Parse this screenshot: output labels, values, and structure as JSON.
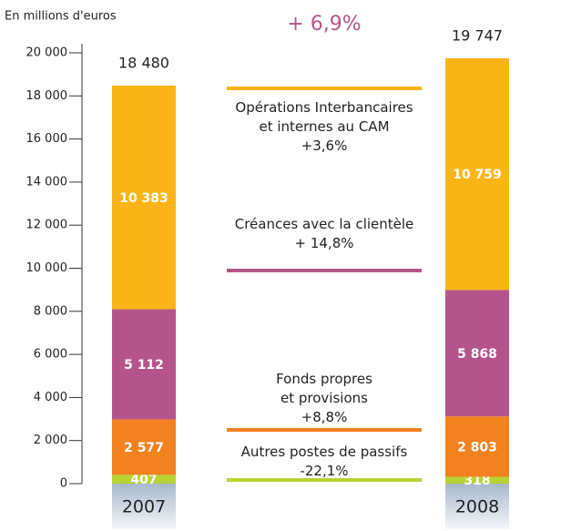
{
  "chart_data": {
    "type": "stacked_bar",
    "subtitle": "+ 6,9%",
    "y_axis_label": "En millions d'euros",
    "categories": [
      "2007",
      "2008"
    ],
    "series": [
      {
        "name": "Autres postes de passifs",
        "change": "-22,1%",
        "color": "#b7d334",
        "values": [
          407,
          318
        ],
        "value_labels": [
          "407",
          "318"
        ]
      },
      {
        "name": "Fonds propres et provisions",
        "change": "+8,8%",
        "color": "#f2811f",
        "values": [
          2577,
          2803
        ],
        "value_labels": [
          "2 577",
          "2 803"
        ]
      },
      {
        "name": "Créances avec la clientèle",
        "change": "+ 14,8%",
        "color": "#b4548a",
        "values": [
          5112,
          5868
        ],
        "value_labels": [
          "5 112",
          "5 868"
        ]
      },
      {
        "name": "Opérations Interbancaires et internes au CAM",
        "change": "+3,6%",
        "color": "#fbb418",
        "values": [
          10383,
          10759
        ],
        "value_labels": [
          "10 383",
          "10 759"
        ]
      }
    ],
    "totals": {
      "values": [
        18480,
        19747
      ],
      "value_labels": [
        "18 480",
        "19 747"
      ]
    },
    "ylim": [
      0,
      20000
    ],
    "yticks": [
      0,
      {
        "value": 2000,
        "label": "2 000"
      },
      {
        "value": 4000,
        "label": "4 000"
      },
      {
        "value": 6000,
        "label": "6 000"
      },
      {
        "value": 8000,
        "label": "8 000"
      },
      {
        "value": 10000,
        "label": "10 000"
      },
      {
        "value": 12000,
        "label": "12 000"
      },
      {
        "value": 14000,
        "label": "14 000"
      },
      {
        "value": 16000,
        "label": "16 000"
      },
      {
        "value": 18000,
        "label": "18 000"
      },
      {
        "value": 20000,
        "label": "20 000"
      }
    ]
  }
}
